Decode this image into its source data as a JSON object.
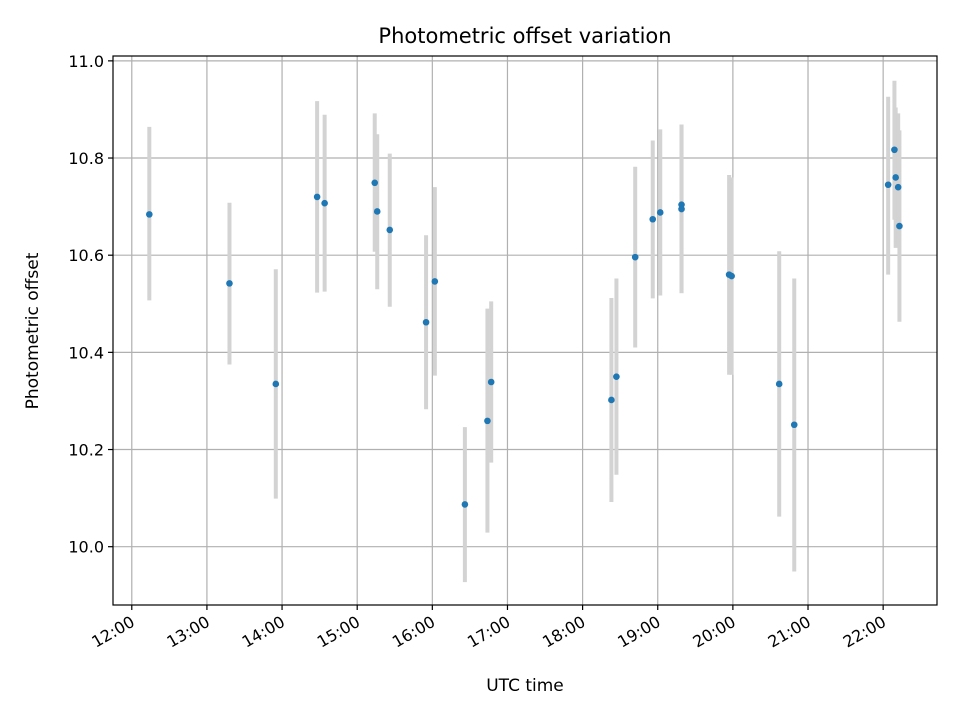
{
  "chart_data": {
    "type": "scatter",
    "title": "Photometric offset variation",
    "xlabel": "UTC time",
    "ylabel": "Photometric offset",
    "x_ticks": [
      "12:00",
      "13:00",
      "14:00",
      "15:00",
      "16:00",
      "17:00",
      "18:00",
      "19:00",
      "20:00",
      "21:00",
      "22:00"
    ],
    "x_tick_hours": [
      12,
      13,
      14,
      15,
      16,
      17,
      18,
      19,
      20,
      21,
      22
    ],
    "xlim": [
      "11:45",
      "22:43"
    ],
    "y_ticks": [
      "10.0",
      "10.2",
      "10.4",
      "10.6",
      "10.8",
      "11.0"
    ],
    "y_tick_values": [
      10.0,
      10.2,
      10.4,
      10.6,
      10.8,
      11.0
    ],
    "ylim": [
      9.88,
      11.01
    ],
    "grid": true,
    "colors": {
      "point": "#1f77b4",
      "errorbar": "#d3d3d3"
    },
    "points": [
      {
        "x": "12:14",
        "y": 10.684,
        "yerr_low": 10.507,
        "yerr_high": 10.864
      },
      {
        "x": "13:18",
        "y": 10.542,
        "yerr_low": 10.375,
        "yerr_high": 10.708
      },
      {
        "x": "13:55",
        "y": 10.335,
        "yerr_low": 10.099,
        "yerr_high": 10.571
      },
      {
        "x": "14:28",
        "y": 10.72,
        "yerr_low": 10.523,
        "yerr_high": 10.917
      },
      {
        "x": "14:34",
        "y": 10.707,
        "yerr_low": 10.525,
        "yerr_high": 10.889
      },
      {
        "x": "15:14",
        "y": 10.749,
        "yerr_low": 10.607,
        "yerr_high": 10.892
      },
      {
        "x": "15:16",
        "y": 10.69,
        "yerr_low": 10.53,
        "yerr_high": 10.849
      },
      {
        "x": "15:26",
        "y": 10.652,
        "yerr_low": 10.494,
        "yerr_high": 10.809
      },
      {
        "x": "15:55",
        "y": 10.462,
        "yerr_low": 10.283,
        "yerr_high": 10.641
      },
      {
        "x": "16:02",
        "y": 10.546,
        "yerr_low": 10.352,
        "yerr_high": 10.74
      },
      {
        "x": "16:26",
        "y": 10.087,
        "yerr_low": 9.927,
        "yerr_high": 10.246
      },
      {
        "x": "16:44",
        "y": 10.259,
        "yerr_low": 10.029,
        "yerr_high": 10.49
      },
      {
        "x": "16:47",
        "y": 10.339,
        "yerr_low": 10.173,
        "yerr_high": 10.505
      },
      {
        "x": "18:23",
        "y": 10.302,
        "yerr_low": 10.092,
        "yerr_high": 10.512
      },
      {
        "x": "18:27",
        "y": 10.35,
        "yerr_low": 10.148,
        "yerr_high": 10.552
      },
      {
        "x": "18:42",
        "y": 10.596,
        "yerr_low": 10.41,
        "yerr_high": 10.782
      },
      {
        "x": "18:56",
        "y": 10.674,
        "yerr_low": 10.511,
        "yerr_high": 10.836
      },
      {
        "x": "19:02",
        "y": 10.688,
        "yerr_low": 10.517,
        "yerr_high": 10.859
      },
      {
        "x": "19:19",
        "y": 10.704,
        "yerr_low": 10.522,
        "yerr_high": 10.869
      },
      {
        "x": "19:19",
        "y": 10.695,
        "yerr_low": 10.522,
        "yerr_high": 10.869
      },
      {
        "x": "19:57",
        "y": 10.56,
        "yerr_low": 10.354,
        "yerr_high": 10.765
      },
      {
        "x": "19:59",
        "y": 10.557,
        "yerr_low": 10.354,
        "yerr_high": 10.76
      },
      {
        "x": "20:37",
        "y": 10.335,
        "yerr_low": 10.062,
        "yerr_high": 10.608
      },
      {
        "x": "20:49",
        "y": 10.251,
        "yerr_low": 9.949,
        "yerr_high": 10.552
      },
      {
        "x": "22:04",
        "y": 10.745,
        "yerr_low": 10.56,
        "yerr_high": 10.926
      },
      {
        "x": "22:09",
        "y": 10.817,
        "yerr_low": 10.673,
        "yerr_high": 10.959
      },
      {
        "x": "22:10",
        "y": 10.76,
        "yerr_low": 10.615,
        "yerr_high": 10.904
      },
      {
        "x": "22:12",
        "y": 10.74,
        "yerr_low": 10.62,
        "yerr_high": 10.892
      },
      {
        "x": "22:13",
        "y": 10.66,
        "yerr_low": 10.463,
        "yerr_high": 10.857
      }
    ]
  }
}
